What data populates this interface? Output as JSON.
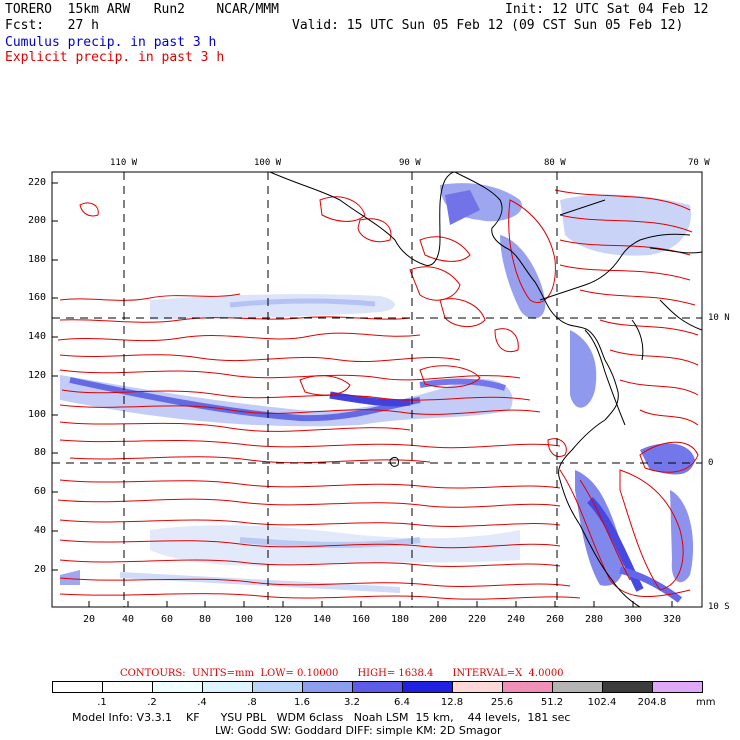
{
  "header": {
    "model": "TORERO  15km ARW   Run2    NCAR/MMM",
    "init": "Init: 12 UTC Sat 04 Feb 12",
    "fcst": "Fcst:   27 h",
    "valid": "Valid: 15 UTC Sun 05 Feb 12 (09 CST Sun 05 Feb 12)",
    "cumulus": "Cumulus precip. in past 3 h",
    "explicit": "Explicit precip. in past 3 h"
  },
  "map": {
    "lon_labels": [
      "110 W",
      "100 W",
      "90 W",
      "80 W",
      "70 W"
    ],
    "lat_labels": [
      "10 N",
      "0",
      "10 S"
    ],
    "y_ticks": [
      "220",
      "200",
      "180",
      "160",
      "140",
      "120",
      "100",
      "80",
      "60",
      "40",
      "20"
    ],
    "x_ticks": [
      "20",
      "40",
      "60",
      "80",
      "100",
      "120",
      "140",
      "160",
      "180",
      "200",
      "220",
      "240",
      "260",
      "280",
      "300",
      "320"
    ]
  },
  "contours": "CONTOURS:  UNITS=mm  LOW= 0.10000      HIGH= 1638.4      INTERVAL=X  4.0000",
  "colorbar": {
    "labels": [
      ".1",
      ".2",
      ".4",
      ".8",
      "1.6",
      "3.2",
      "6.4",
      "12.8",
      "25.6",
      "51.2",
      "102.4",
      "204.8"
    ],
    "unit": "mm",
    "colors": [
      "#ffffff",
      "#ffffff",
      "#f0ffff",
      "#dcf5ff",
      "#b8d4f8",
      "#8c9ef0",
      "#5c5ce8",
      "#2020e0",
      "#ffd8d8",
      "#f090b8",
      "#b4b4b4",
      "#3c3c3c",
      "#e0a8f8"
    ]
  },
  "footer": {
    "line1": "Model Info: V3.3.1    KF      YSU PBL   WDM 6class   Noah LSM  15 km,    44 levels,  181 sec",
    "line2": "LW: Godd SW: Goddard DIFF: simple KM: 2D Smagor"
  }
}
